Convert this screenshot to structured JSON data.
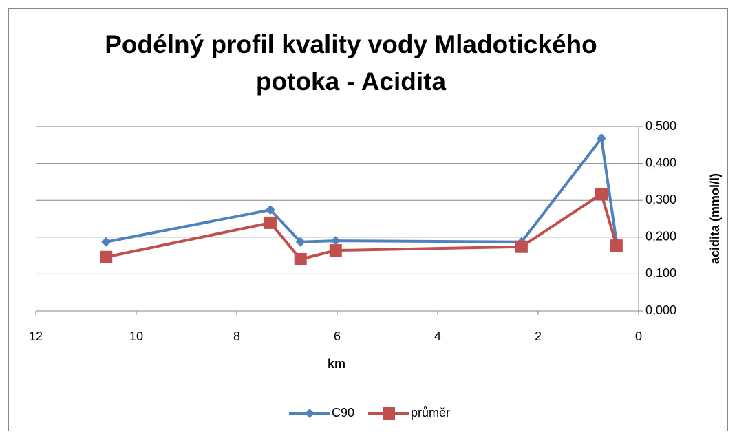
{
  "chart_data": {
    "type": "line",
    "title": "Podélný profil kvality vody Mladotického potoka - Acidita",
    "x_label": "km",
    "y_label": "acidita (mmol/l)",
    "xlim": [
      12,
      0
    ],
    "xticks": [
      12,
      10,
      8,
      6,
      4,
      2,
      0
    ],
    "ylim": [
      0,
      0.5
    ],
    "yticks": [
      {
        "value": 0,
        "label": "0,000"
      },
      {
        "value": 0.1,
        "label": "0,100"
      },
      {
        "value": 0.2,
        "label": "0,200"
      },
      {
        "value": 0.3,
        "label": "0,300"
      },
      {
        "value": 0.4,
        "label": "0,400"
      },
      {
        "value": 0.5,
        "label": "0,500"
      }
    ],
    "grid": true,
    "legend": "bottom",
    "x": [
      10.6,
      7.33,
      6.73,
      6.03,
      2.33,
      0.74,
      0.44
    ],
    "series": [
      {
        "name": "C90",
        "color": "#4f81bd",
        "marker": "diamond",
        "values": [
          0.187,
          0.274,
          0.187,
          0.19,
          0.187,
          0.468,
          0.187
        ]
      },
      {
        "name": "průměr",
        "color": "#c0504d",
        "marker": "square",
        "values": [
          0.146,
          0.239,
          0.14,
          0.164,
          0.174,
          0.317,
          0.177
        ]
      }
    ]
  }
}
